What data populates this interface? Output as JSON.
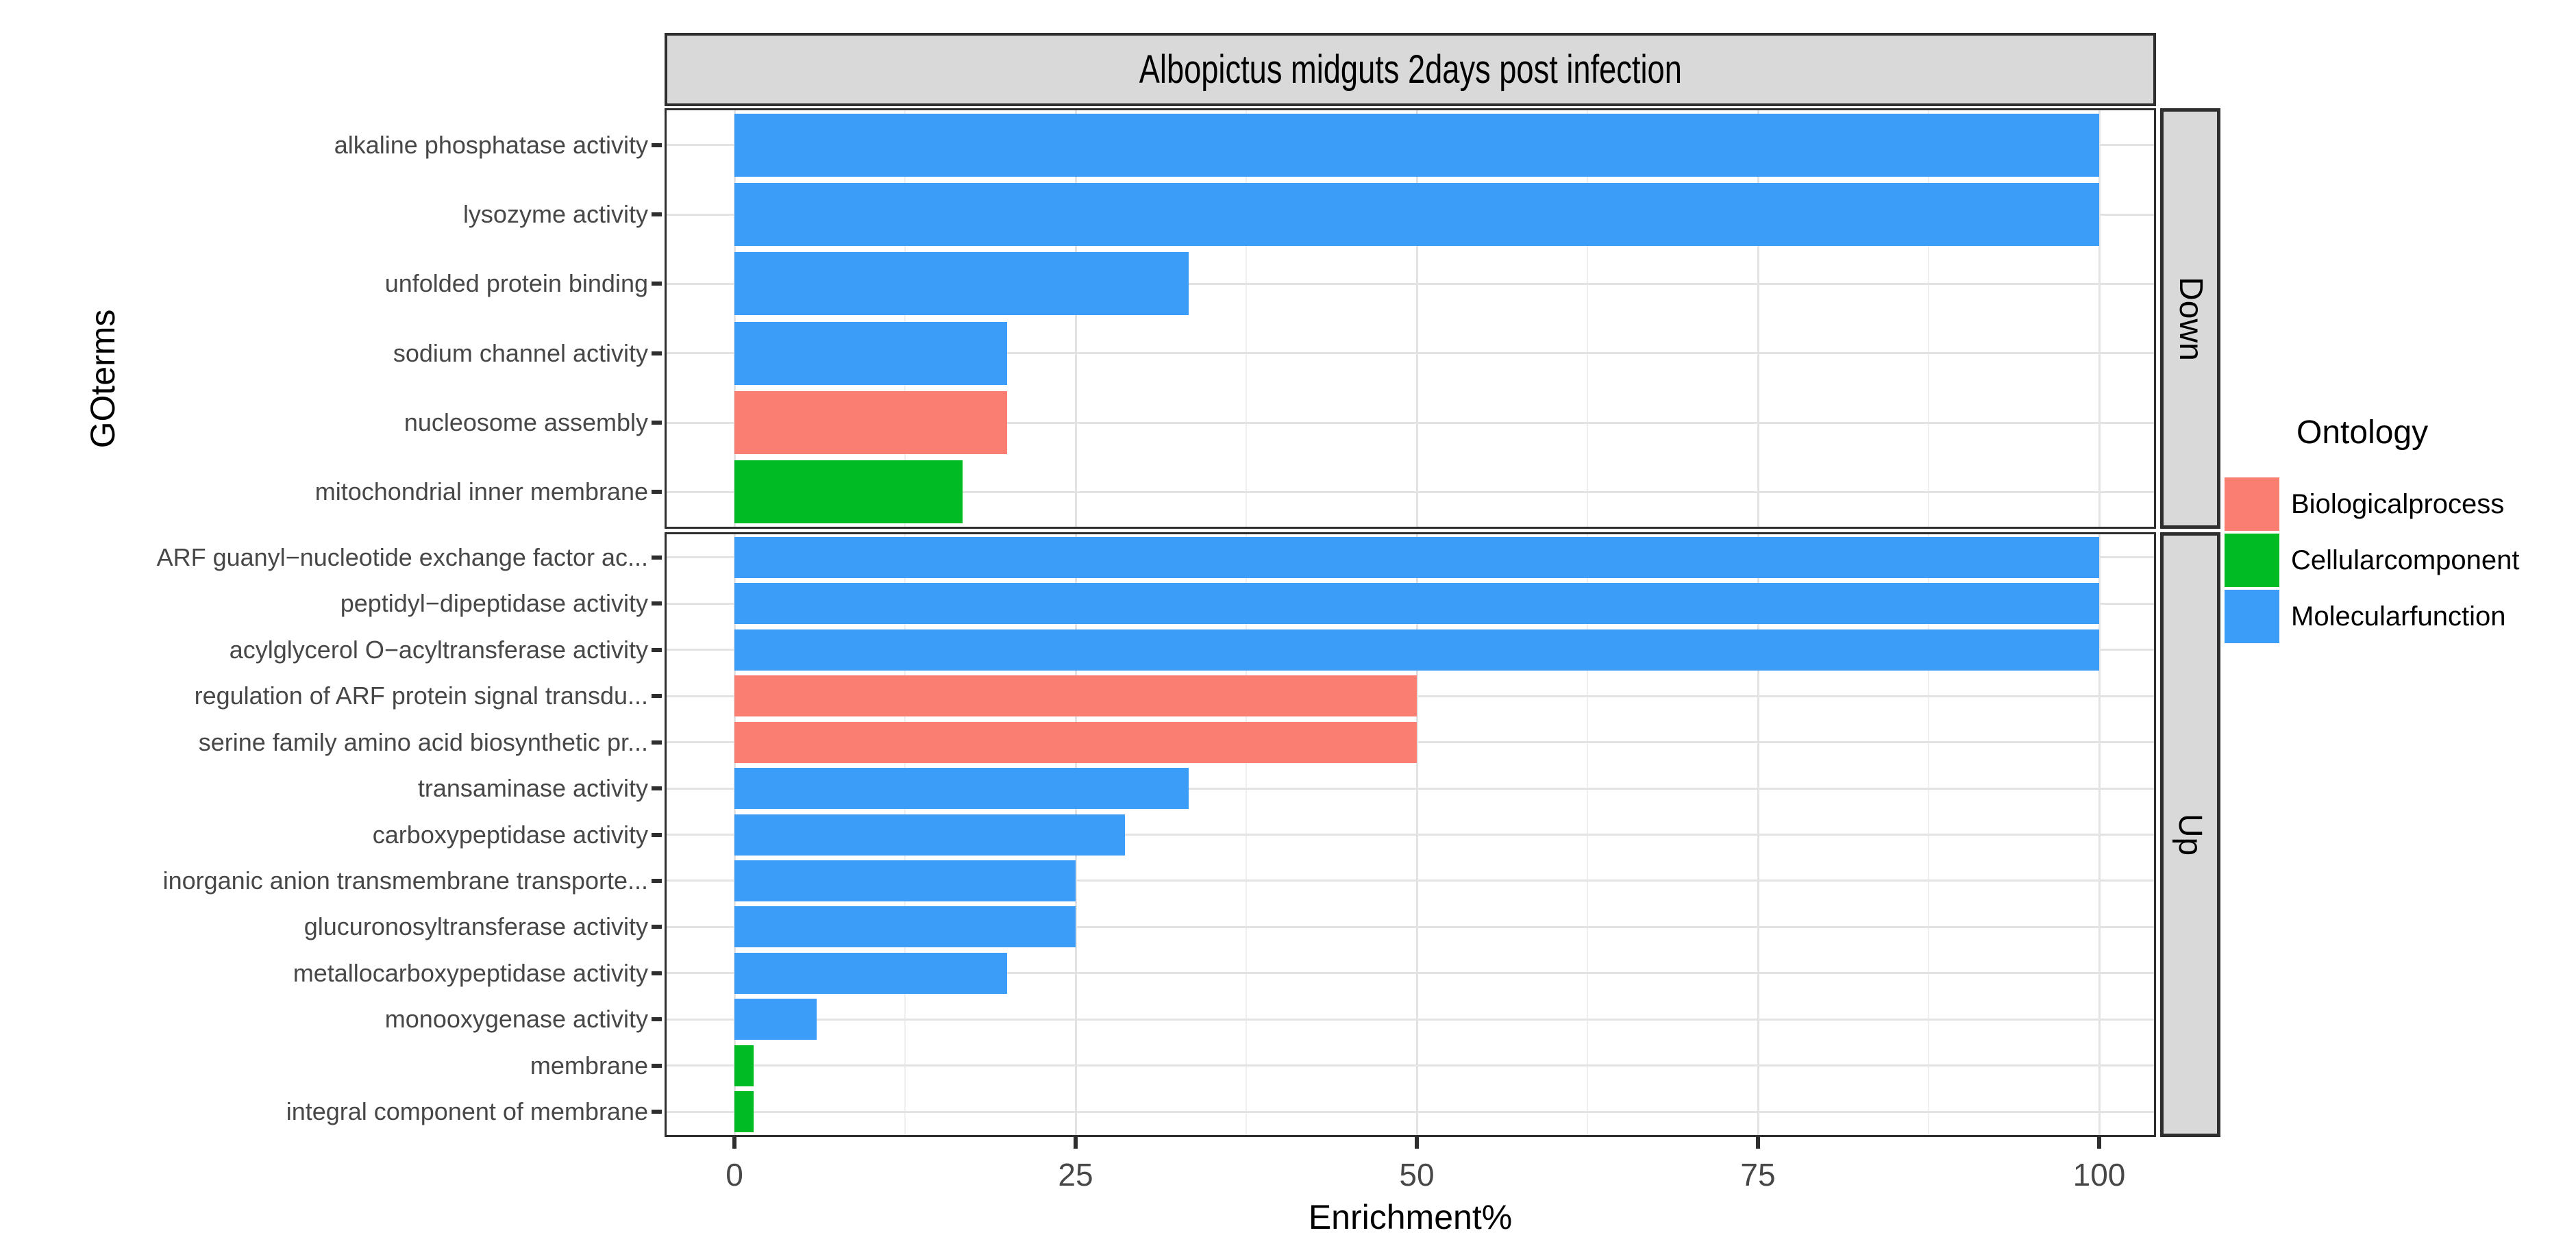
{
  "title": "Albopictus midguts 2days post infection",
  "y_axis_title": "GOterms",
  "x_axis_title": "Enrichment%",
  "legend": {
    "title": "Ontology",
    "entries": [
      {
        "label": "Biologicalprocess",
        "color": "#FA7E72"
      },
      {
        "label": "Cellularcomponent",
        "color": "#00BB24"
      },
      {
        "label": "Molecularfunction",
        "color": "#3B9DF8"
      }
    ]
  },
  "chart_data": {
    "type": "bar",
    "orientation": "horizontal",
    "title": "Albopictus midguts 2days post infection",
    "xlabel": "Enrichment%",
    "ylabel": "GOterms",
    "xlim": [
      0,
      104
    ],
    "x_major_ticks": [
      0,
      25,
      50,
      75,
      100
    ],
    "x_minor_gridlines": [
      12.5,
      37.5,
      62.5,
      87.5
    ],
    "grid": true,
    "legend_position": "right",
    "facets": [
      {
        "name": "Down",
        "rows": [
          {
            "label": "alkaline phosphatase activity",
            "value": 100,
            "ontology": "Molecularfunction"
          },
          {
            "label": "lysozyme activity",
            "value": 100,
            "ontology": "Molecularfunction"
          },
          {
            "label": "unfolded protein binding",
            "value": 33.3,
            "ontology": "Molecularfunction"
          },
          {
            "label": "sodium channel activity",
            "value": 20,
            "ontology": "Molecularfunction"
          },
          {
            "label": "nucleosome assembly",
            "value": 20,
            "ontology": "Biologicalprocess"
          },
          {
            "label": "mitochondrial inner membrane",
            "value": 16.7,
            "ontology": "Cellularcomponent"
          }
        ]
      },
      {
        "name": "Up",
        "rows": [
          {
            "label": "ARF guanyl−nucleotide exchange factor ac...",
            "value": 100,
            "ontology": "Molecularfunction"
          },
          {
            "label": "peptidyl−dipeptidase activity",
            "value": 100,
            "ontology": "Molecularfunction"
          },
          {
            "label": "acylglycerol O−acyltransferase activity",
            "value": 100,
            "ontology": "Molecularfunction"
          },
          {
            "label": "regulation of ARF protein signal transdu...",
            "value": 50,
            "ontology": "Biologicalprocess"
          },
          {
            "label": "serine family amino acid biosynthetic pr...",
            "value": 50,
            "ontology": "Biologicalprocess"
          },
          {
            "label": "transaminase activity",
            "value": 33.3,
            "ontology": "Molecularfunction"
          },
          {
            "label": "carboxypeptidase activity",
            "value": 28.6,
            "ontology": "Molecularfunction"
          },
          {
            "label": "inorganic anion transmembrane transporte...",
            "value": 25,
            "ontology": "Molecularfunction"
          },
          {
            "label": "glucuronosyltransferase activity",
            "value": 25,
            "ontology": "Molecularfunction"
          },
          {
            "label": "metallocarboxypeptidase activity",
            "value": 20,
            "ontology": "Molecularfunction"
          },
          {
            "label": "monooxygenase activity",
            "value": 6,
            "ontology": "Molecularfunction"
          },
          {
            "label": "membrane",
            "value": 1.4,
            "ontology": "Cellularcomponent"
          },
          {
            "label": "integral component of membrane",
            "value": 1.4,
            "ontology": "Cellularcomponent"
          }
        ]
      }
    ],
    "ontology_colors": {
      "Biologicalprocess": "#FA7E72",
      "Cellularcomponent": "#00BB24",
      "Molecularfunction": "#3B9DF8"
    }
  }
}
